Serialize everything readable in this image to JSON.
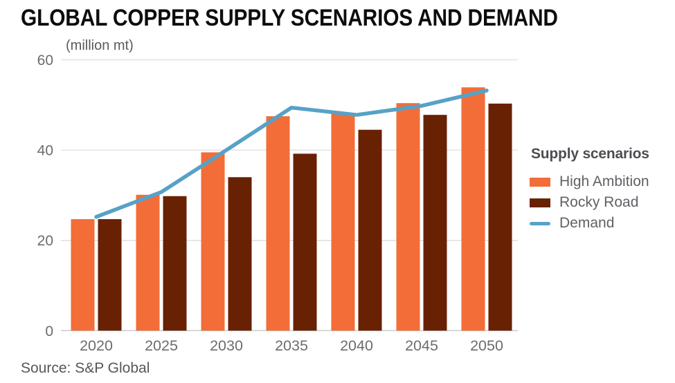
{
  "header": {
    "title": "GLOBAL COPPER SUPPLY SCENARIOS AND DEMAND",
    "units": "(million mt)"
  },
  "legend": {
    "title": "Supply scenarios",
    "items": [
      {
        "label": "High Ambition",
        "color": "#f26d38",
        "swatch": "bar"
      },
      {
        "label": "Rocky Road",
        "color": "#682103",
        "swatch": "bar"
      },
      {
        "label": "Demand",
        "color": "#57a1c8",
        "swatch": "line"
      }
    ]
  },
  "source": {
    "text": "Source: S&P Global"
  },
  "chart_data": {
    "type": "bar",
    "title": "GLOBAL COPPER SUPPLY SCENARIOS AND DEMAND",
    "ylabel": "(million mt)",
    "xlabel": "",
    "categories": [
      "2020",
      "2025",
      "2030",
      "2035",
      "2040",
      "2045",
      "2050"
    ],
    "series": [
      {
        "name": "High Ambition",
        "type": "bar",
        "color": "#f26d38",
        "values": [
          24.7,
          30.1,
          39.5,
          47.5,
          48.2,
          50.4,
          53.9
        ]
      },
      {
        "name": "Rocky Road",
        "type": "bar",
        "color": "#682103",
        "values": [
          24.7,
          29.8,
          34.0,
          39.2,
          44.5,
          47.8,
          50.3
        ]
      },
      {
        "name": "Demand",
        "type": "line",
        "color": "#57a1c8",
        "values": [
          25.2,
          30.7,
          40.0,
          49.4,
          47.8,
          49.8,
          53.2
        ]
      }
    ],
    "ylim": [
      0,
      60
    ],
    "yticks": [
      0,
      20,
      40,
      60
    ],
    "grid": true,
    "legend_position": "right"
  }
}
